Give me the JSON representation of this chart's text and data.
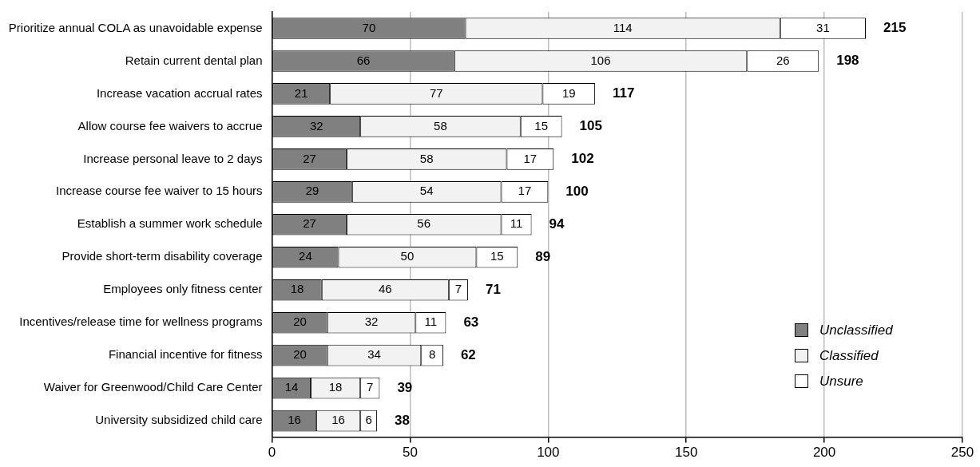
{
  "chart_data": {
    "type": "bar",
    "orientation": "horizontal",
    "stacked": true,
    "categories": [
      "Prioritize annual COLA as unavoidable expense",
      "Retain current dental plan",
      "Increase vacation accrual rates",
      "Allow course fee waivers to accrue",
      "Increase personal leave to 2 days",
      "Increase course fee waiver to 15 hours",
      "Establish a summer work schedule",
      "Provide short-term disability coverage",
      "Employees only fitness center",
      "Incentives/release time for wellness programs",
      "Financial incentive for fitness",
      "Waiver for Greenwood/Child Care Center",
      "University subsidized child care"
    ],
    "series": [
      {
        "name": "Unclassified",
        "color": "#808080",
        "values": [
          70,
          66,
          21,
          32,
          27,
          29,
          27,
          24,
          18,
          20,
          20,
          14,
          16
        ]
      },
      {
        "name": "Classified",
        "color": "#f2f2f2",
        "values": [
          114,
          106,
          77,
          58,
          58,
          54,
          56,
          50,
          46,
          32,
          34,
          18,
          16
        ]
      },
      {
        "name": "Unsure",
        "color": "#ffffff",
        "values": [
          31,
          26,
          19,
          15,
          17,
          17,
          11,
          15,
          7,
          11,
          8,
          7,
          6
        ]
      }
    ],
    "totals": [
      "215",
      "198",
      "117",
      "105",
      "102",
      "100",
      "94",
      "89",
      "71",
      "63",
      "62",
      "39",
      "38"
    ],
    "data_labels": true,
    "xlim": [
      0,
      250
    ],
    "xticks": [
      0,
      50,
      100,
      150,
      200,
      250
    ],
    "grid": "x",
    "legend": "bottom right"
  }
}
